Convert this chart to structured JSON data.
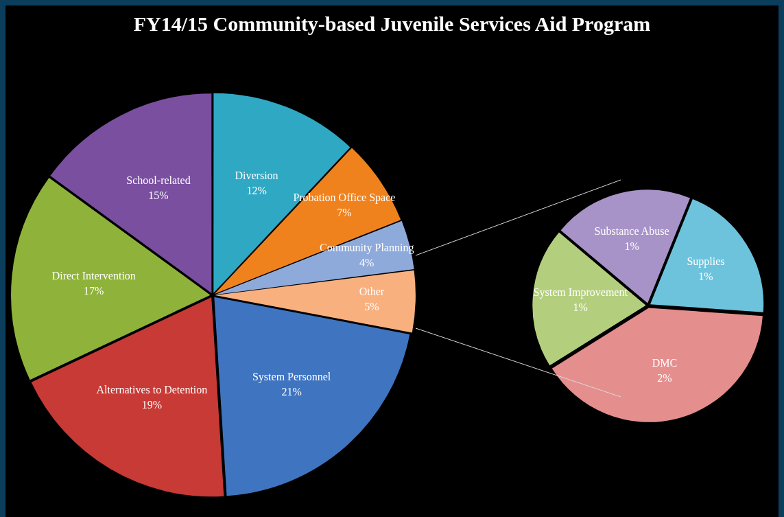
{
  "chart_data": [
    {
      "type": "pie",
      "title": "FY14/15 Community-based  Juvenile Services Aid Program",
      "categories": [
        "Diversion",
        "Probation Office Space",
        "Community Planning",
        "Other",
        "System Personnel",
        "Alternatives to Detention",
        "Direct Intervention",
        "School-related"
      ],
      "values": [
        12,
        7,
        4,
        5,
        21,
        19,
        17,
        15
      ],
      "value_labels": [
        "12%",
        "7%",
        "4%",
        "5%",
        "21%",
        "19%",
        "17%",
        "15%"
      ],
      "colors": [
        "#2fa8c4",
        "#f0821e",
        "#8eaadb",
        "#f9b07f",
        "#3f74c0",
        "#c83a36",
        "#8fb33a",
        "#7a4fa0"
      ]
    },
    {
      "type": "pie",
      "categories": [
        "Substance Abuse",
        "Supplies",
        "DMC",
        "System Improvement"
      ],
      "values": [
        1,
        1,
        2,
        1
      ],
      "value_labels": [
        "1%",
        "1%",
        "2%",
        "1%"
      ],
      "colors": [
        "#a893c8",
        "#6dc3dc",
        "#e58e8e",
        "#b3cf7e"
      ]
    }
  ]
}
